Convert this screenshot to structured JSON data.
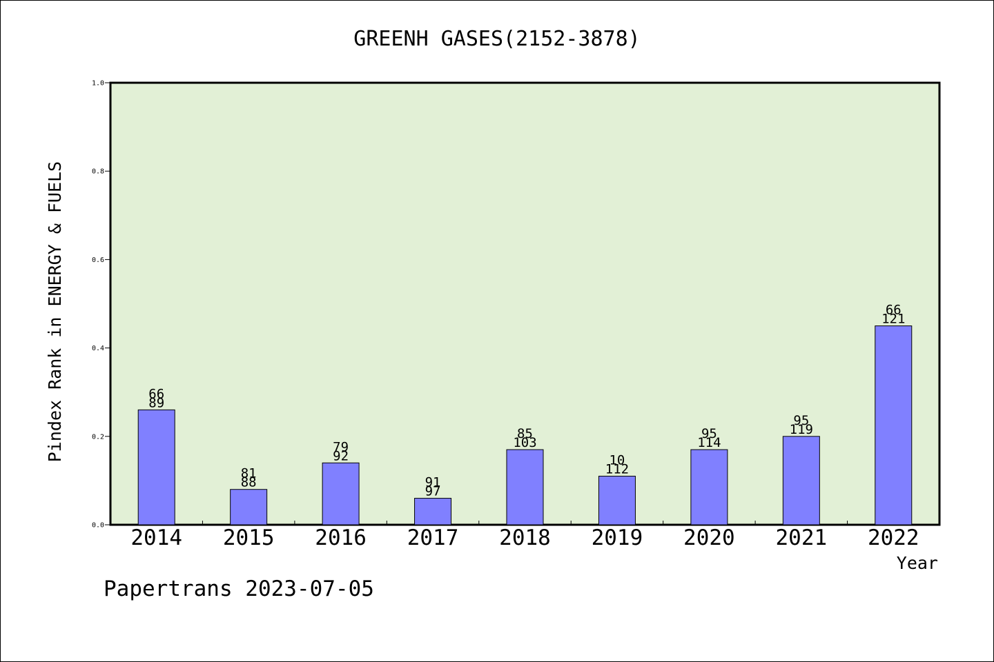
{
  "chart_data": {
    "type": "bar",
    "title": "GREENH GASES(2152-3878)",
    "xlabel": "Year",
    "ylabel": "Pindex Rank in ENERGY & FUELS",
    "categories": [
      "2014",
      "2015",
      "2016",
      "2017",
      "2018",
      "2019",
      "2020",
      "2021",
      "2022"
    ],
    "values": [
      0.26,
      0.08,
      0.14,
      0.06,
      0.17,
      0.11,
      0.17,
      0.2,
      0.45
    ],
    "labels_top": [
      "66",
      "81",
      "79",
      "91",
      "85",
      "10",
      "95",
      "95",
      "66"
    ],
    "labels_bottom": [
      "89",
      "88",
      "92",
      "97",
      "103",
      "112",
      "114",
      "119",
      "121"
    ],
    "ylim": [
      0,
      1.0
    ],
    "yticks": [
      "0.0",
      "0.2",
      "0.4",
      "0.6",
      "0.8",
      "1.0"
    ],
    "grid": false,
    "colors": {
      "bar": "#8080ff",
      "plot_bg": "#e2f0d6",
      "axis": "#000000"
    }
  },
  "footer": {
    "text": "Papertrans 2023-07-05"
  }
}
